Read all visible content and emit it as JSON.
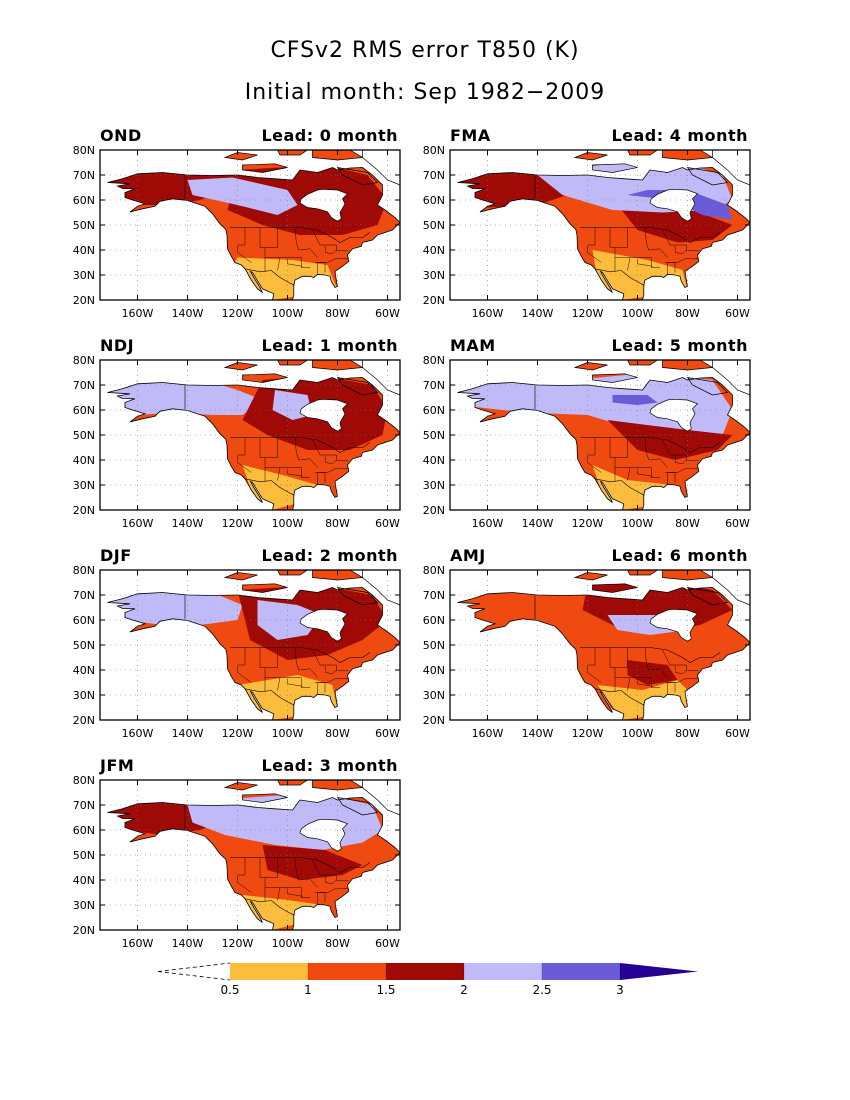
{
  "figure": {
    "title": "CFSv2 RMS error T850 (K)",
    "subtitle": "Initial month: Sep 1982−2009"
  },
  "map_data": {
    "type": "filled-contour map panels",
    "region": "North America",
    "lat_ticks": [
      "20N",
      "30N",
      "40N",
      "50N",
      "60N",
      "70N",
      "80N"
    ],
    "lon_ticks": [
      "160W",
      "140W",
      "120W",
      "100W",
      "80W",
      "60W"
    ],
    "lat_range": [
      20,
      80
    ],
    "lon_range": [
      -175,
      -55
    ],
    "panels": [
      {
        "season": "OND",
        "lead": "Lead: 0 month"
      },
      {
        "season": "FMA",
        "lead": "Lead: 4 month"
      },
      {
        "season": "NDJ",
        "lead": "Lead: 1 month"
      },
      {
        "season": "MAM",
        "lead": "Lead: 5 month"
      },
      {
        "season": "DJF",
        "lead": "Lead: 2 month"
      },
      {
        "season": "AMJ",
        "lead": "Lead: 6 month"
      },
      {
        "season": "JFM",
        "lead": "Lead: 3 month"
      }
    ],
    "colorbar": {
      "levels": [
        "0.5",
        "1",
        "1.5",
        "2",
        "2.5",
        "3"
      ],
      "colors": [
        "#fcbc3c",
        "#f04a10",
        "#a00a06",
        "#c0baf8",
        "#6a5cd8",
        "#260094"
      ],
      "lower_end": "open (dashed)",
      "upper_end": "arrow"
    }
  }
}
